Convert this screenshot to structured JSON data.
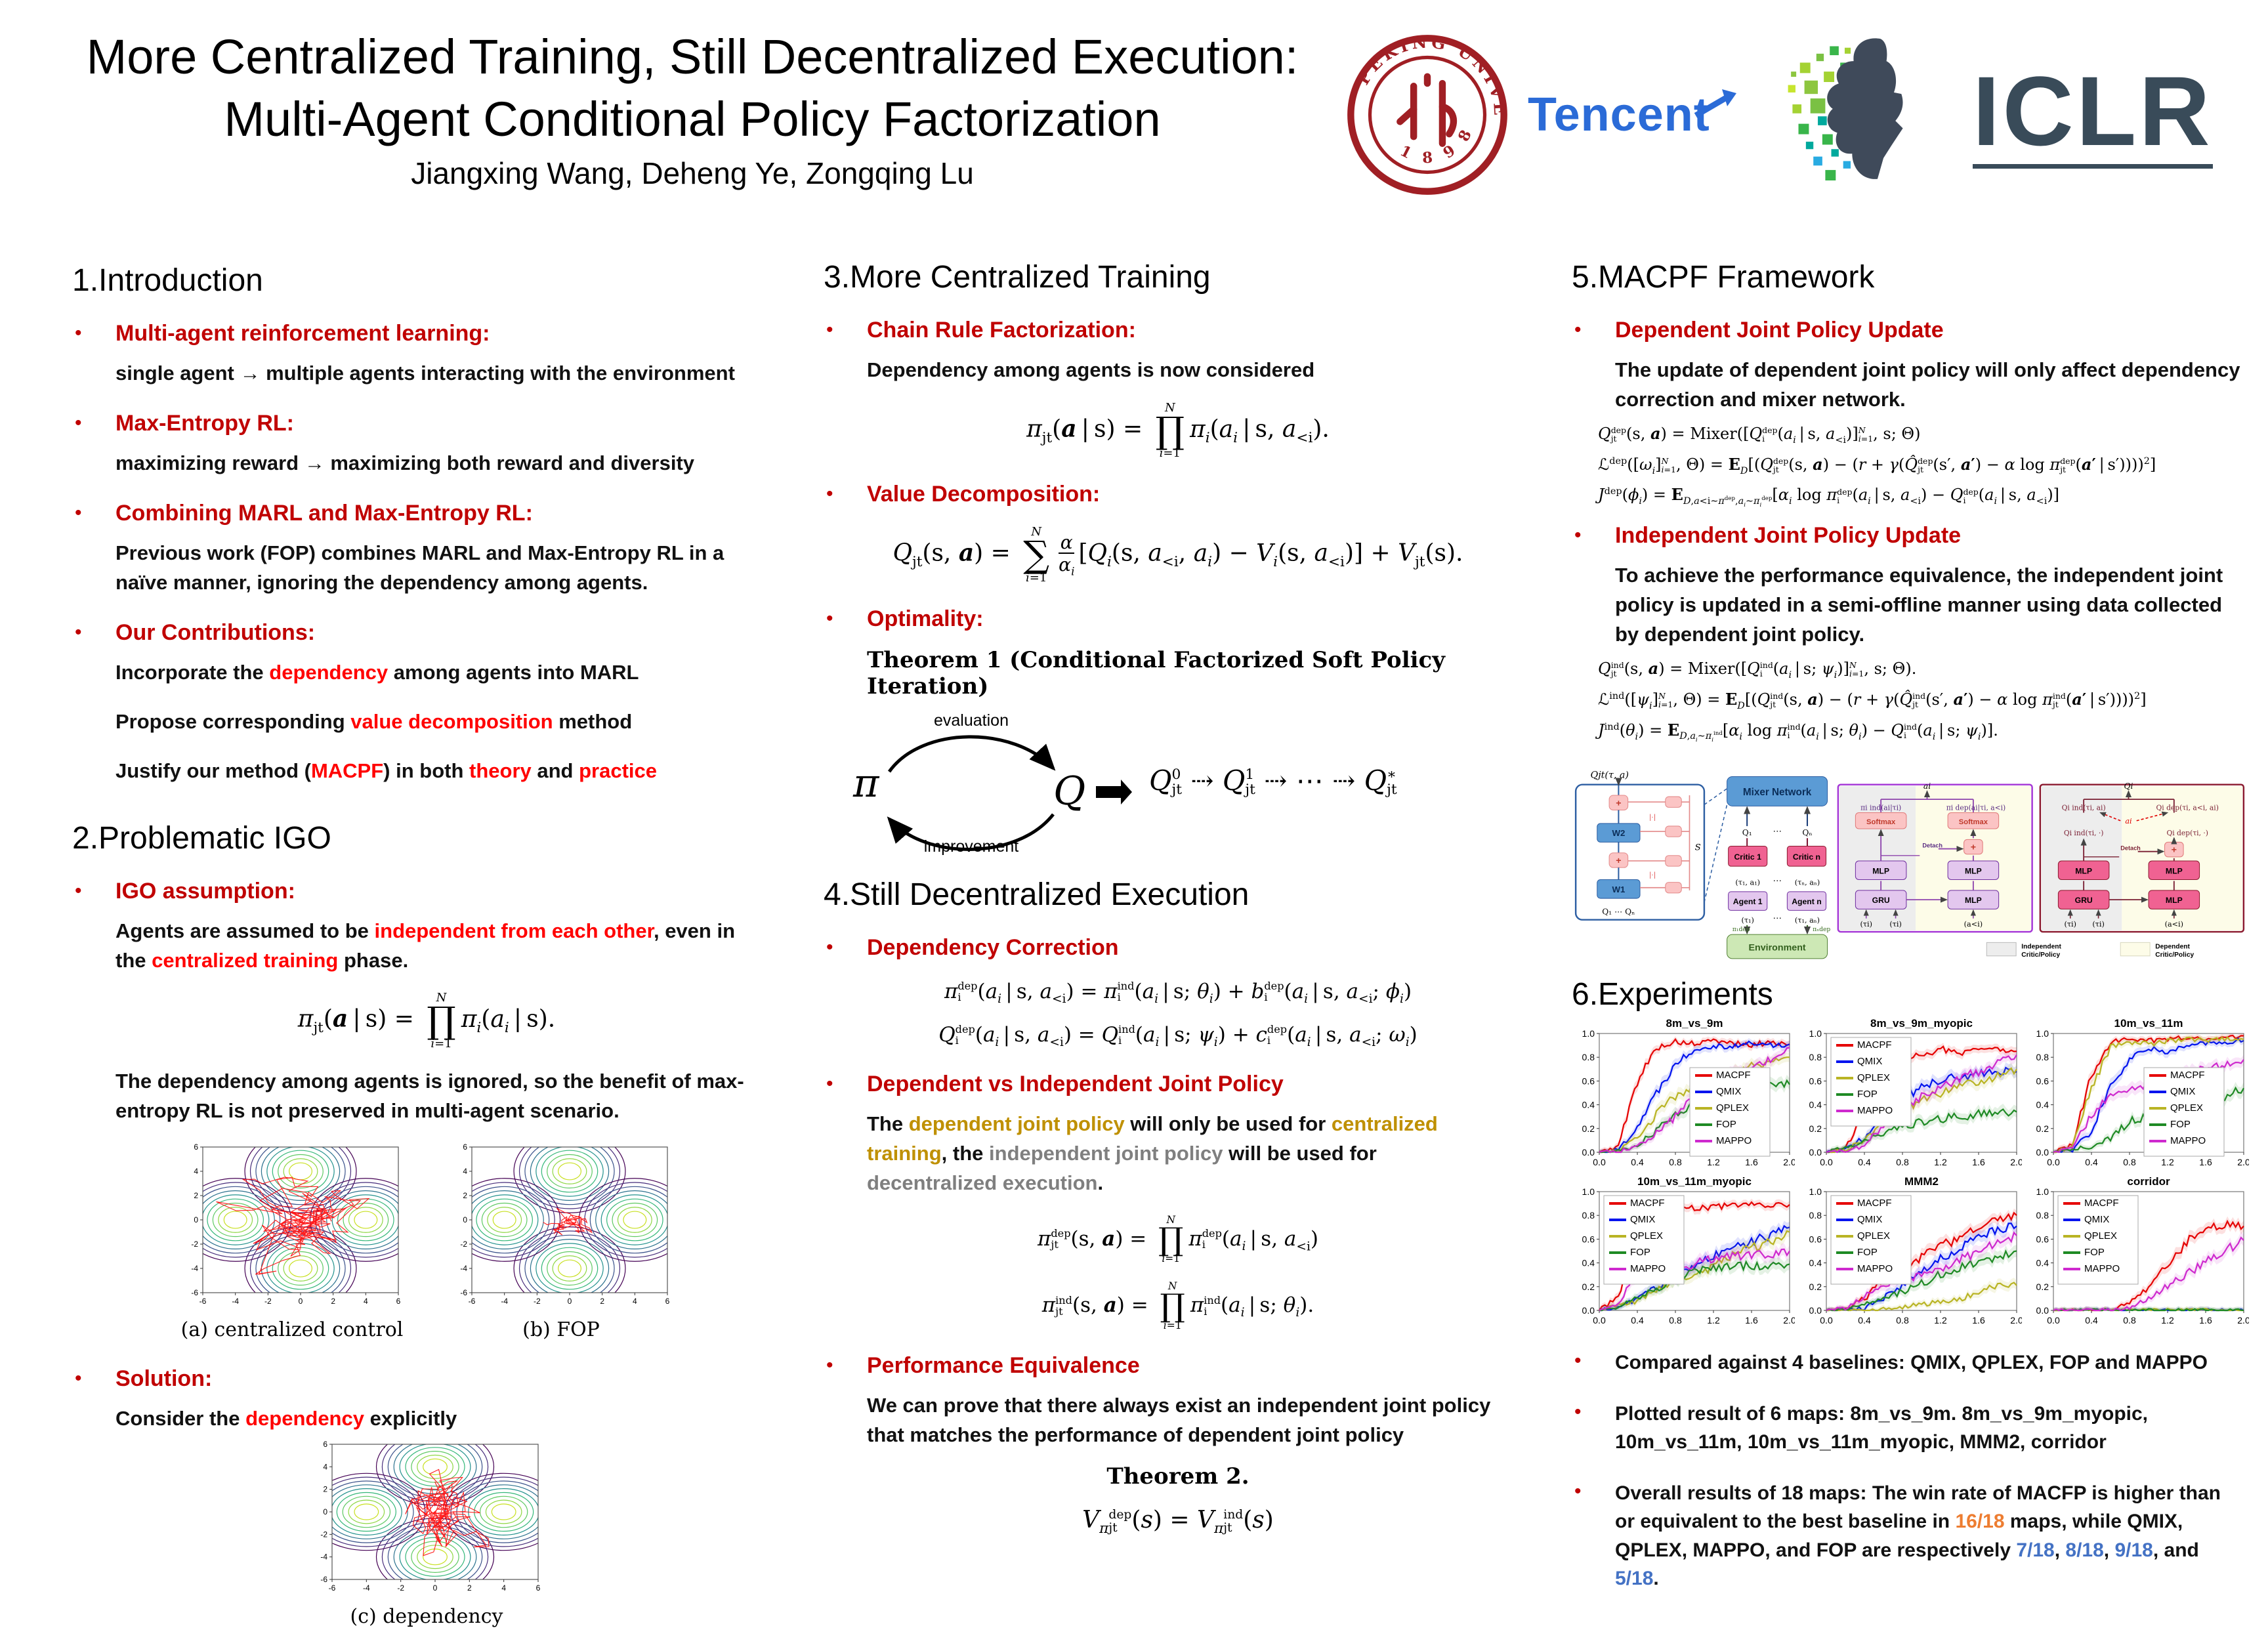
{
  "header": {
    "title1": "More Centralized Training, Still Decentralized Execution:",
    "title2": "Multi-Agent Conditional Policy Factorization",
    "authors": "Jiangxing Wang, Deheng Ye, Zongqing Lu"
  },
  "logos": {
    "peking_arc": "PEKING UNIVERSITY",
    "peking_year": "1 8 9 8",
    "tencent": "Tencent",
    "iclr": "ICLR"
  },
  "intro": {
    "heading": "1.Introduction",
    "b1_head": "Multi-agent reinforcement learning:",
    "b1_l1": "single agent → multiple agents interacting with the environment",
    "b2_head": "Max-Entropy RL:",
    "b2_l1": "maximizing reward → maximizing both reward and diversity",
    "b3_head": "Combining MARL and Max-Entropy RL:",
    "b3_l1": "Previous work (FOP) combines MARL and Max-Entropy RL in a naïve manner, ignoring the dependency among agents.",
    "b4_head": "Our Contributions:",
    "b4_l1": "Incorporate the <span class='red'>dependency</span> among agents into MARL",
    "b4_l2": "Propose corresponding <span class='red'>value decomposition</span> method",
    "b4_l3": "Justify our method (<span class='red'>MACPF</span>) in both <span class='red'>theory</span> and <span class='red'>practice</span>"
  },
  "igo": {
    "heading": "2.Problematic IGO",
    "b1_head": "IGO assumption:",
    "b1_l1": "Agents are assumed to be <span class='red'>independent from each other</span>, even in the <span class='red'>centralized training</span> phase.",
    "eq": "<i>π</i><sub>jt</sub>(<b><i>a</i></b> | s) = <span class='st'><span class='lim'><i>N</i></span><span class='bo'>∏</span><span class='lim'><i>i</i>=1</span></span><i>π<sub>i</sub></i>(<i>a<sub>i</sub></i> | s).",
    "b1_l2": "The dependency among agents is ignored, so the benefit of max-entropy RL is not preserved in multi-agent scenario.",
    "figures": [
      {
        "caption": "(a) centralized control",
        "steps": 170,
        "sx": 1.5,
        "sy": 1.1,
        "seed": 7
      },
      {
        "caption": "(b) FOP",
        "steps": 60,
        "sx": 0.55,
        "sy": 0.5,
        "seed": 3
      },
      {
        "caption": "(c) dependency",
        "steps": 150,
        "sx": 0.9,
        "sy": 1.7,
        "seed": 11
      }
    ],
    "axis_ticks": [
      -6,
      -4,
      -2,
      0,
      2,
      4,
      6
    ],
    "b2_head": "Solution:",
    "b2_l1": "Consider the <span class='red'>dependency</span> explicitly"
  },
  "sec3": {
    "heading": "3.More Centralized Training",
    "b1_head": "Chain Rule Factorization:",
    "b1_l1": "Dependency among agents is now considered",
    "eq1": "<i>π</i><sub>jt</sub>(<b><i>a</i></b> | s) = <span class='st'><span class='lim'><i>N</i></span><span class='bo'>∏</span><span class='lim'><i>i</i>=1</span></span><i>π<sub>i</sub></i>(<i>a<sub>i</sub></i> | s, <i>a</i><sub>&lt;i</sub>).",
    "b2_head": "Value Decomposition:",
    "eq2": "<i>Q</i><sub>jt</sub>(s, <b><i>a</i></b>) = <span class='st'><span class='lim'><i>N</i></span><span class='bo'>∑</span><span class='lim'><i>i</i>=1</span></span><span class='fr'><span><i>α</i></span><span class='den'><i>α<sub>i</sub></i></span></span>[<i>Q<sub>i</sub></i>(s, <i>a</i><sub>&lt;i</sub>, <i>a<sub>i</sub></i>) − <i>V<sub>i</sub></i>(s, <i>a</i><sub>&lt;i</sub>)] + <i>V</i><sub>jt</sub>(s).",
    "b3_head": "Optimality:",
    "theorem1": "Theorem 1 (Conditional Factorized Soft Policy Iteration)",
    "cycle": {
      "pi": "π",
      "q": "Q",
      "evaluation": "evaluation",
      "improvement": "improvement",
      "seq": "<i>Q</i><span class='ss'><span>0</span><span>jt</span></span> ⇢ <i>Q</i><span class='ss'><span>1</span><span>jt</span></span> ⇢ ⋯ ⇢ <i>Q</i><span class='ss'><span>∗</span><span>jt</span></span>"
    }
  },
  "sec4": {
    "heading": "4.Still Decentralized Execution",
    "b1_head": "Dependency Correction",
    "eq1": "<i>π</i><span class='ss'><span>dep</span><span>i</span></span>(<i>a<sub>i</sub></i> | s, <i>a</i><sub>&lt;i</sub>) = <i>π</i><span class='ss'><span>ind</span><span>i</span></span>(<i>a<sub>i</sub></i> | s; <i>θ<sub>i</sub></i>) + <i>b</i><span class='ss'><span>dep</span><span>i</span></span>(<i>a<sub>i</sub></i> | s, <i>a</i><sub>&lt;i</sub>; <i>ϕ<sub>i</sub></i>)",
    "eq2": "<i>Q</i><span class='ss'><span>dep</span><span>i</span></span>(<i>a<sub>i</sub></i> | s, <i>a</i><sub>&lt;i</sub>) = <i>Q</i><span class='ss'><span>ind</span><span>i</span></span>(<i>a<sub>i</sub></i> | s; <i>ψ<sub>i</sub></i>) + <i>c</i><span class='ss'><span>dep</span><span>i</span></span>(<i>a<sub>i</sub></i> | s, <i>a</i><sub>&lt;i</sub>; <i>ω<sub>i</sub></i>)",
    "b2_head": "Dependent vs Independent Joint Policy",
    "b2_l1": "The <span class='gold'>dependent joint policy</span> will only be used for <span class='gold'>centralized training</span>, the <span class='gray'>independent joint policy</span> will be used for <span class='gray'>decentralized execution</span>.",
    "eq3": "<i>π</i><span class='ss'><span>dep</span><span>jt</span></span>(s, <b><i>a</i></b>) = <span class='st'><span class='lim'><i>N</i></span><span class='bo'>∏</span><span class='lim'><i>i</i>=1</span></span><i>π</i><span class='ss'><span>dep</span><span>i</span></span>(<i>a<sub>i</sub></i> | s, <i>a</i><sub>&lt;i</sub>)",
    "eq4": "<i>π</i><span class='ss'><span>ind</span><span>jt</span></span>(s, <b><i>a</i></b>) = <span class='st'><span class='lim'><i>N</i></span><span class='bo'>∏</span><span class='lim'><i>i</i>=1</span></span><i>π</i><span class='ss'><span>ind</span><span>i</span></span>(<i>a<sub>i</sub></i> | s; <i>θ<sub>i</sub></i>).",
    "b3_head": "Performance Equivalence",
    "b3_l1": "We can prove that there always exist an independent joint policy that matches the performance of dependent joint policy",
    "theorem2": "Theorem 2.",
    "eqv": "<i>V</i><sub><i>π</i></sub><span class='ss'><span>dep</span><span>jt</span></span>(<i>s</i>) = <i>V</i><sub><i>π</i></sub><span class='ss'><span>ind</span><span>jt</span></span>(<i>s</i>)"
  },
  "sec5": {
    "heading": "5.MACPF Framework",
    "b1_head": "Dependent Joint Policy Update",
    "b1_l1": "The update of dependent joint policy will only affect dependency correction and mixer network.",
    "d1": "<i>Q</i><span class='ss'><span>dep</span><span>jt</span></span>(s, <b><i>a</i></b>) = Mixer([<i>Q</i><span class='ss'><span>dep</span><span>i</span></span>(<i>a<sub>i</sub></i> | s, <i>a</i><sub>&lt;i</sub>)]<span class='ss'><span><i>N</i></span><span><i>i</i>=1</span></span>, s; Θ)",
    "d2": "ℒ<sup>dep</sup>([<i>ω<sub>i</sub></i>]<span class='ss'><span><i>N</i></span><span><i>i</i>=1</span></span>, Θ) = <b>E</b><sub><i>D</i></sub>[(<i>Q</i><span class='ss'><span>dep</span><span>jt</span></span>(s, <b><i>a</i></b>) − (<i>r</i> + <i>γ</i>(<i>Q̂</i><span class='ss'><span>dep</span><span>jt</span></span>(s′, <b><i>a</i>′</b>) − <i>α</i> log <i>π</i><span class='ss'><span>dep</span><span>jt</span></span>(<b><i>a</i>′</b> | s′))))<sup>2</sup>]",
    "d3": "<i>J</i><sup>dep</sup>(<i>ϕ<sub>i</sub></i>) = <b>E</b><sub><i>D</i>,<i>a</i>&lt;i∼<i>π</i><sup>dep</sup>,<i>a<sub>i</sub></i>∼<i>π<sub>i</sub></i><sup>dep</sup></sub>[<i>α<sub>i</sub></i> log <i>π</i><span class='ss'><span>dep</span><span>i</span></span>(<i>a<sub>i</sub></i> | s, <i>a</i><sub>&lt;i</sub>) − <i>Q</i><span class='ss'><span>dep</span><span>i</span></span>(<i>a<sub>i</sub></i> | s, <i>a</i><sub>&lt;i</sub>)]",
    "b2_head": "Independent Joint Policy Update",
    "b2_l1": "To achieve the performance equivalence, the independent joint policy is updated in a semi-offline manner using data collected by dependent joint policy.",
    "i1": "<i>Q</i><span class='ss'><span>ind</span><span>jt</span></span>(s, <b><i>a</i></b>) = Mixer([<i>Q</i><span class='ss'><span>ind</span><span>i</span></span>(<i>a<sub>i</sub></i> | s; <i>ψ<sub>i</sub></i>)]<span class='ss'><span><i>N</i></span><span><i>i</i>=1</span></span>, s; Θ).",
    "i2": "ℒ<sup>ind</sup>([<i>ψ<sub>i</sub></i>]<span class='ss'><span><i>N</i></span><span><i>i</i>=1</span></span>, Θ) = <b>E</b><sub><i>D</i></sub>[(<i>Q</i><span class='ss'><span>ind</span><span>jt</span></span>(s, <b><i>a</i></b>) − (<i>r</i> + <i>γ</i>(<i>Q̂</i><span class='ss'><span>ind</span><span>jt</span></span>(s′, <b><i>a</i>′</b>) − <i>α</i> log <i>π</i><span class='ss'><span>ind</span><span>jt</span></span>(<b><i>a</i>′</b> | s′))))<sup>2</sup>]",
    "i3": "<i>J</i><sup>ind</sup>(<i>θ<sub>i</sub></i>) = <b>E</b><sub><i>D</i>,<i>a<sub>i</sub></i>∼<i>π<sub>i</sub></i><sup>ind</sup></sub>[<i>α<sub>i</sub></i> log <i>π</i><span class='ss'><span>ind</span><span>i</span></span>(<i>a<sub>i</sub></i> | s; <i>θ<sub>i</sub></i>) − <i>Q</i><span class='ss'><span>ind</span><span>i</span></span>(<i>a<sub>i</sub></i> | s; <i>ψ<sub>i</sub></i>)]."
  },
  "sec6": {
    "heading": "6.Experiments",
    "b1": "Compared against 4 baselines: QMIX, QPLEX, FOP and MAPPO",
    "b2": "Plotted result of 6 maps: 8m_vs_9m. 8m_vs_9m_myopic, 10m_vs_11m, 10m_vs_11m_myopic, MMM2, corridor",
    "b3": "Overall results of 18 maps: The win rate of MACFP is higher than or equivalent to the best baseline in <span class='orange'>16/18</span> maps, while QMIX, QPLEX, MAPPO, and FOP are respectively <span class='blue'>7/18</span>, <span class='blue'>8/18</span>, <span class='blue'>9/18</span>, and <span class='blue'>5/18</span>."
  },
  "diagram": {
    "labels": {
      "qjt": "Qjt(τ, a)",
      "w1": "W1",
      "w2": "W2",
      "plus": "+",
      "abs": "|·|",
      "s": "S",
      "q1n": "Q₁  ⋯  Qₙ",
      "mixer": "Mixer Network",
      "q1": "Q₁",
      "dots": "⋯",
      "qn": "Qₙ",
      "critic1": "Critic 1",
      "criticn": "Critic n",
      "ta1": "(τ₁, a₁)",
      "tan": "(τₙ, aₙ)",
      "agent1": "Agent 1",
      "agentn": "Agent n",
      "t1": "(τ₁)",
      "t1an": "(τ₁, aₙ)",
      "pi1dep": "π₁dep",
      "pindep": "πₙdep",
      "env": "Environment",
      "ai": "ai",
      "pi_ind": "πi ind(ai|τi)",
      "pi_dep": "πi dep(ai|τi, a<i)",
      "softmax": "Softmax",
      "detach": "Detach",
      "mlp": "MLP",
      "gru": "GRU",
      "ti": "(τi)",
      "alti": "(a<i)",
      "qi": "Qi",
      "qi_ind": "Qi ind(τi, ai)",
      "qi_dep": "Qi dep(τi, a<i, ai)",
      "qi_ind2": "Qi ind(τi, ·)",
      "qi_dep2": "Qi dep(τi, ·)",
      "leg_ind1": "Independent",
      "leg_ind2": "Critic/Policy",
      "leg_dep1": "Dependent",
      "leg_dep2": "Critic/Policy"
    }
  },
  "chart_data": {
    "type": "line",
    "x": [
      0,
      0.2,
      0.4,
      0.6,
      0.8,
      1.0,
      1.2,
      1.4,
      1.6,
      1.8,
      2.0
    ],
    "xticks": [
      "0.0",
      "0.4",
      "0.8",
      "1.2",
      "1.6",
      "2.0"
    ],
    "yticks": [
      "0.0",
      "0.2",
      "0.4",
      "0.6",
      "0.8",
      "1.0"
    ],
    "ylim": [
      0,
      1
    ],
    "legend": [
      "MACPF",
      "QMIX",
      "QPLEX",
      "FOP",
      "MAPPO"
    ],
    "colors": [
      "#e50000",
      "#0013ee",
      "#b9b424",
      "#1e8a24",
      "#ce29ce"
    ],
    "charts": [
      {
        "title": "8m_vs_9m",
        "legend_pos": "cr",
        "series": [
          [
            0,
            0.05,
            0.6,
            0.88,
            0.93,
            0.91,
            0.94,
            0.92,
            0.9,
            0.93,
            0.91
          ],
          [
            0,
            0.02,
            0.22,
            0.5,
            0.75,
            0.87,
            0.9,
            0.89,
            0.92,
            0.9,
            0.91
          ],
          [
            0,
            0.01,
            0.12,
            0.32,
            0.47,
            0.57,
            0.63,
            0.66,
            0.72,
            0.76,
            0.8
          ],
          [
            0,
            0.01,
            0.06,
            0.18,
            0.32,
            0.42,
            0.46,
            0.5,
            0.53,
            0.55,
            0.57
          ],
          [
            0,
            0,
            0.06,
            0.16,
            0.3,
            0.46,
            0.56,
            0.66,
            0.72,
            0.78,
            0.88
          ]
        ]
      },
      {
        "title": "8m_vs_9m_myopic",
        "legend_pos": "tl",
        "series": [
          [
            0,
            0.03,
            0.35,
            0.72,
            0.78,
            0.82,
            0.87,
            0.84,
            0.87,
            0.88,
            0.85
          ],
          [
            0,
            0.02,
            0.12,
            0.3,
            0.45,
            0.55,
            0.6,
            0.64,
            0.66,
            0.68,
            0.68
          ],
          [
            0,
            0.02,
            0.1,
            0.26,
            0.36,
            0.44,
            0.5,
            0.55,
            0.6,
            0.64,
            0.7
          ],
          [
            0,
            0.04,
            0.1,
            0.16,
            0.22,
            0.26,
            0.28,
            0.3,
            0.32,
            0.33,
            0.34
          ],
          [
            0,
            0.01,
            0.06,
            0.22,
            0.36,
            0.46,
            0.55,
            0.62,
            0.68,
            0.76,
            0.82
          ]
        ]
      },
      {
        "title": "10m_vs_11m",
        "legend_pos": "cr",
        "series": [
          [
            0,
            0.06,
            0.65,
            0.93,
            0.96,
            0.94,
            0.95,
            0.97,
            0.95,
            0.96,
            0.98
          ],
          [
            0,
            0.02,
            0.18,
            0.55,
            0.78,
            0.87,
            0.84,
            0.9,
            0.92,
            0.93,
            0.94
          ],
          [
            0,
            0.05,
            0.55,
            0.88,
            0.93,
            0.91,
            0.94,
            0.95,
            0.94,
            0.95,
            0.95
          ],
          [
            0,
            0.02,
            0.05,
            0.12,
            0.26,
            0.3,
            0.33,
            0.37,
            0.41,
            0.46,
            0.54
          ],
          [
            0,
            0.03,
            0.32,
            0.46,
            0.52,
            0.58,
            0.62,
            0.67,
            0.7,
            0.74,
            0.78
          ]
        ]
      },
      {
        "title": "10m_vs_11m_myopic",
        "legend_pos": "tl",
        "series": [
          [
            0,
            0.12,
            0.6,
            0.82,
            0.84,
            0.86,
            0.87,
            0.88,
            0.9,
            0.88,
            0.89
          ],
          [
            0,
            0.02,
            0.1,
            0.2,
            0.27,
            0.37,
            0.45,
            0.52,
            0.58,
            0.63,
            0.7
          ],
          [
            0,
            0.04,
            0.08,
            0.17,
            0.24,
            0.3,
            0.37,
            0.46,
            0.53,
            0.58,
            0.66
          ],
          [
            0,
            0.03,
            0.1,
            0.18,
            0.25,
            0.32,
            0.36,
            0.37,
            0.38,
            0.38,
            0.39
          ],
          [
            0,
            0.06,
            0.3,
            0.37,
            0.34,
            0.39,
            0.43,
            0.45,
            0.47,
            0.48,
            0.5
          ]
        ]
      },
      {
        "title": "MMM2",
        "legend_pos": "tl",
        "series": [
          [
            0,
            0.01,
            0.1,
            0.25,
            0.32,
            0.44,
            0.55,
            0.6,
            0.7,
            0.76,
            0.8
          ],
          [
            0,
            0,
            0.02,
            0.1,
            0.22,
            0.32,
            0.44,
            0.52,
            0.62,
            0.68,
            0.71
          ],
          [
            0,
            0,
            0,
            0.01,
            0.03,
            0.05,
            0.07,
            0.1,
            0.14,
            0.22,
            0.21
          ],
          [
            0,
            0.01,
            0.05,
            0.1,
            0.16,
            0.23,
            0.3,
            0.36,
            0.4,
            0.44,
            0.5
          ],
          [
            0,
            0.02,
            0.12,
            0.22,
            0.26,
            0.3,
            0.35,
            0.42,
            0.5,
            0.58,
            0.63
          ]
        ]
      },
      {
        "title": "corridor",
        "legend_pos": "tl",
        "series": [
          [
            0,
            0,
            0,
            0,
            0.06,
            0.2,
            0.38,
            0.58,
            0.68,
            0.72,
            0.71
          ],
          [
            0,
            0,
            0,
            0,
            0,
            0,
            0,
            0,
            0,
            0,
            0
          ],
          [
            0,
            0,
            0,
            0,
            0,
            0,
            0,
            0,
            0,
            0,
            0
          ],
          [
            0,
            0,
            0,
            0,
            0,
            0,
            0,
            0,
            0,
            0,
            0
          ],
          [
            0,
            0,
            0,
            0,
            0.02,
            0.1,
            0.2,
            0.3,
            0.42,
            0.5,
            0.59
          ]
        ]
      }
    ]
  }
}
